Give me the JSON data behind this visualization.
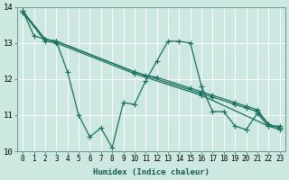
{
  "xlabel": "Humidex (Indice chaleur)",
  "bg_color": "#cce8e0",
  "grid_color": "#b0d8d0",
  "line_color": "#1a7060",
  "xlim": [
    -0.5,
    23.5
  ],
  "ylim": [
    10,
    14
  ],
  "yticks": [
    10,
    11,
    12,
    13,
    14
  ],
  "xticks": [
    0,
    1,
    2,
    3,
    4,
    5,
    6,
    7,
    8,
    9,
    10,
    11,
    12,
    13,
    14,
    15,
    16,
    17,
    18,
    19,
    20,
    21,
    22,
    23
  ],
  "line1_x": [
    0,
    1,
    2,
    3,
    4,
    5,
    6,
    7,
    8,
    9,
    10,
    11,
    12,
    13,
    14,
    15,
    16,
    17,
    18,
    19,
    20,
    21,
    22,
    23
  ],
  "line1_y": [
    13.88,
    13.2,
    13.1,
    13.05,
    12.2,
    11.0,
    10.4,
    10.65,
    10.1,
    11.35,
    11.3,
    11.95,
    12.5,
    13.05,
    13.05,
    13.0,
    11.8,
    11.1,
    11.1,
    10.7,
    10.6,
    11.05,
    10.7,
    10.7
  ],
  "line2_x": [
    0,
    2,
    3,
    10,
    11,
    12,
    15,
    16,
    17,
    19,
    20,
    21,
    22,
    23
  ],
  "line2_y": [
    13.88,
    13.1,
    13.05,
    12.2,
    12.1,
    12.05,
    11.75,
    11.65,
    11.55,
    11.35,
    11.25,
    11.15,
    10.75,
    10.65
  ],
  "line3_x": [
    0,
    2,
    3,
    10,
    16,
    17,
    19,
    20,
    21,
    22,
    23
  ],
  "line3_y": [
    13.88,
    13.1,
    13.05,
    12.2,
    11.6,
    11.5,
    11.3,
    11.2,
    11.1,
    10.75,
    10.65
  ],
  "line4_x": [
    0,
    2,
    3,
    10,
    16,
    22,
    23
  ],
  "line4_y": [
    13.85,
    13.05,
    13.0,
    12.15,
    11.55,
    10.7,
    10.6
  ]
}
